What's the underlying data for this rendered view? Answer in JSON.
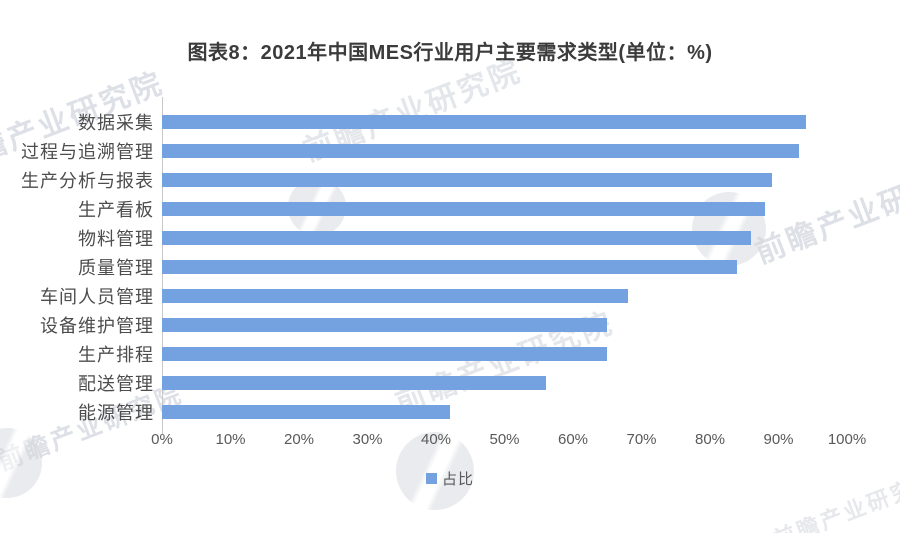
{
  "title": "图表8：2021年中国MES行业用户主要需求类型(单位：%)",
  "watermark": {
    "text": "前瞻产业研究院"
  },
  "legend": {
    "label": "占比"
  },
  "colors": {
    "bar": "#74A2E1",
    "axis_line": "#C8C8C8",
    "title_text": "#3B3B3B",
    "label_text": "#4D4D4D",
    "tick_text": "#595959",
    "watermark": "#C3C8D2"
  },
  "chart_data": {
    "type": "bar",
    "orientation": "horizontal",
    "title": "图表8：2021年中国MES行业用户主要需求类型(单位：%)",
    "categories": [
      "数据采集",
      "过程与追溯管理",
      "生产分析与报表",
      "生产看板",
      "物料管理",
      "质量管理",
      "车间人员管理",
      "设备维护管理",
      "生产排程",
      "配送管理",
      "能源管理"
    ],
    "values": [
      94,
      93,
      89,
      88,
      86,
      84,
      68,
      65,
      65,
      56,
      42
    ],
    "series": [
      {
        "name": "占比",
        "values": [
          94,
          93,
          89,
          88,
          86,
          84,
          68,
          65,
          65,
          56,
          42
        ]
      }
    ],
    "x_ticks": [
      "0%",
      "10%",
      "20%",
      "30%",
      "40%",
      "50%",
      "60%",
      "70%",
      "80%",
      "90%",
      "100%"
    ],
    "xlim": [
      0,
      100
    ],
    "xlabel": "",
    "ylabel": "",
    "grid": false,
    "legend_position": "bottom"
  }
}
